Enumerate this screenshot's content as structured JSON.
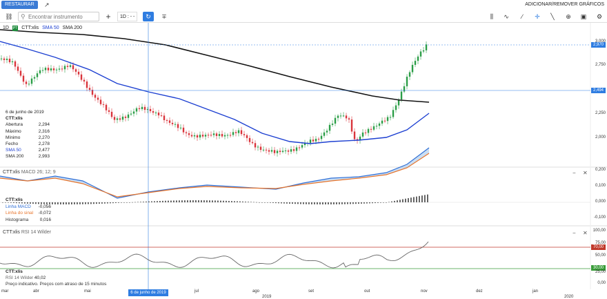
{
  "topbar": {
    "restore_label": "RESTAURAR",
    "add_remove_label": "ADICIONAR/REMOVER GRÁFICOS"
  },
  "toolbar": {
    "search_placeholder": "Encontrar instrumento",
    "interval_label": "1D : - -",
    "icons": [
      "link-icon",
      "search-icon",
      "add-icon",
      "minus-icon",
      "refresh-icon",
      "split-icon",
      "candles-icon",
      "indicator-icon",
      "line-draw-icon",
      "crosshair-icon",
      "trend-icon",
      "zoom-icon",
      "camera-icon",
      "settings-icon"
    ]
  },
  "main": {
    "interval": "1D",
    "symbol_badge": "PT",
    "symbol": "CTT:xlis",
    "sma50_label": "SMA 50",
    "sma200_label": "SMA 200",
    "date": "6 de junho de 2019",
    "instrument": "CTT:xlis",
    "rows": [
      {
        "k": "Abertura",
        "v": "2,294"
      },
      {
        "k": "Máximo",
        "v": "2,316"
      },
      {
        "k": "Mínimo",
        "v": "2,270"
      },
      {
        "k": "Fecho",
        "v": "2,278"
      },
      {
        "k": "SMA 50",
        "v": "2,477"
      },
      {
        "k": "SMA 200",
        "v": "2,993"
      }
    ],
    "y_ticks": [
      "3,000",
      "2,750",
      "2,500",
      "2,250",
      "2,000"
    ],
    "last_price": "2,970",
    "crosshair_price": "2,494"
  },
  "macd": {
    "title": "CTT:xlis",
    "params": "MACD 26; 12; 9",
    "instrument": "CTT:xlis",
    "rows": [
      {
        "k": "Linha MACD",
        "v": "-0,056",
        "color": "#2f6fd6"
      },
      {
        "k": "Linha do sinal",
        "v": "-0,072",
        "color": "#e8742a"
      },
      {
        "k": "Histograma",
        "v": "0,016",
        "color": "#333333"
      }
    ],
    "y_ticks": [
      "0,200",
      "0,100",
      "0,000",
      "-0,100"
    ]
  },
  "rsi": {
    "title": "CTT:xlis",
    "params": "RSI 14 Wilder",
    "instrument": "CTT:xlis",
    "label": "RSI 14 Wilder",
    "value": "40,02",
    "y_ticks": [
      "100,00",
      "75,00",
      "50,00",
      "25,00",
      "0,00"
    ],
    "upper": "70,00",
    "lower": "30,00",
    "note": "Preço indicativo. Preços com atraso de 15 minutos"
  },
  "xaxis": {
    "months": [
      "mar",
      "abr",
      "mai",
      "jul",
      "ago",
      "set",
      "out",
      "nov",
      "dez",
      "jan"
    ],
    "years": [
      "2019",
      "2020"
    ],
    "crosshair_date": "6 de junho de 2019"
  },
  "colors": {
    "accent": "#2f7de1",
    "sma50": "#1c3fd1",
    "sma200": "#111111",
    "up": "#2a9d46",
    "down": "#d9333a",
    "rsi_upper": "#c0392b",
    "rsi_lower": "#3a9d3a",
    "macd_line": "#2f6fd6",
    "signal_line": "#e8742a"
  }
}
